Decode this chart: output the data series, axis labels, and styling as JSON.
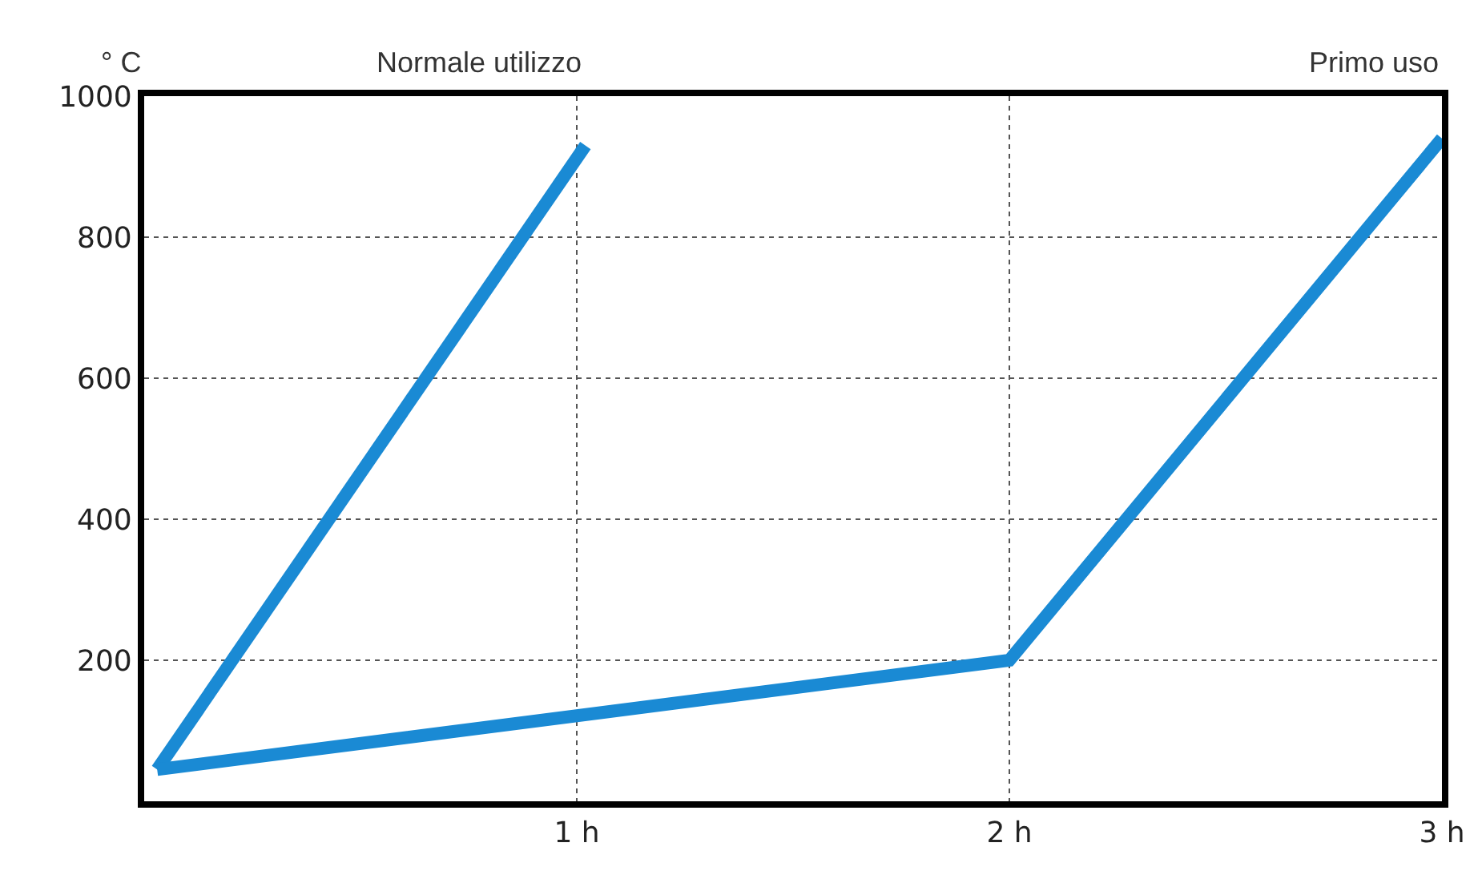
{
  "chart_data": {
    "type": "line",
    "ylabel": "° C",
    "series": [
      {
        "name": "Normale utilizzo",
        "color": "#1a8ad4",
        "x": [
          0.03,
          1.02
        ],
        "values": [
          45,
          930
        ]
      },
      {
        "name": "Primo uso",
        "color": "#1a8ad4",
        "x": [
          0.03,
          2.0,
          3.0
        ],
        "values": [
          45,
          200,
          940
        ]
      }
    ],
    "xlim": [
      0,
      3
    ],
    "xticks": [
      {
        "value": 1,
        "label": "1 h"
      },
      {
        "value": 2,
        "label": "2 h"
      },
      {
        "value": 3,
        "label": "3 h"
      }
    ],
    "ylim": [
      0,
      1000
    ],
    "yticks": [
      200,
      400,
      600,
      800,
      1000
    ],
    "grid": true,
    "legend": false,
    "marker": "none",
    "line_style": "solid"
  }
}
